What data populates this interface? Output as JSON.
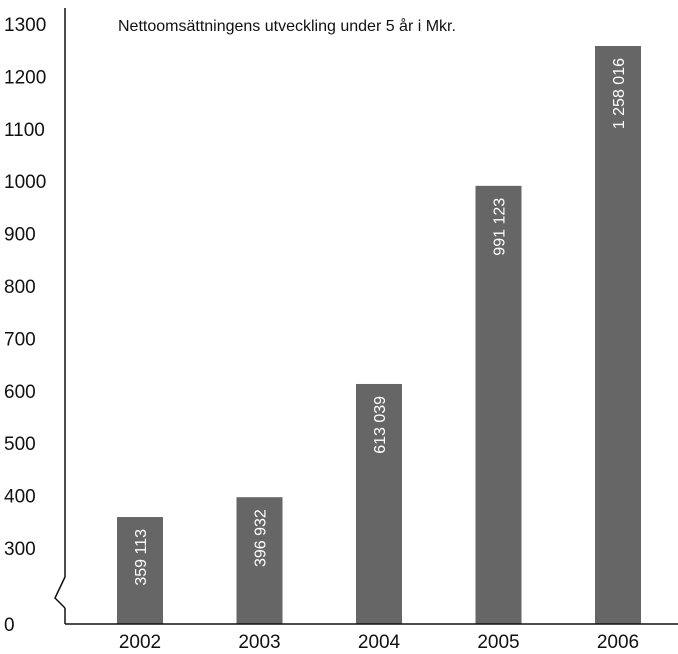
{
  "chart_data": {
    "type": "bar",
    "title": "Nettoomsättningens utveckling under 5 år i Mkr.",
    "xlabel": "",
    "ylabel": "",
    "categories": [
      "2002",
      "2003",
      "2004",
      "2005",
      "2006"
    ],
    "values": [
      359.113,
      396.932,
      613.039,
      991.123,
      1258.016
    ],
    "value_labels": [
      "359 113",
      "396 932",
      "613 039",
      "991 123",
      "1 258 016"
    ],
    "y_ticks": [
      "0",
      "300",
      "400",
      "500",
      "600",
      "700",
      "800",
      "900",
      "1000",
      "1100",
      "1200",
      "1300"
    ],
    "ylim": [
      0,
      1300
    ],
    "axis_break": "between 0 and 300",
    "grid": false,
    "legend": "none",
    "bar_color": "#666666",
    "label_color": "#ffffff"
  }
}
